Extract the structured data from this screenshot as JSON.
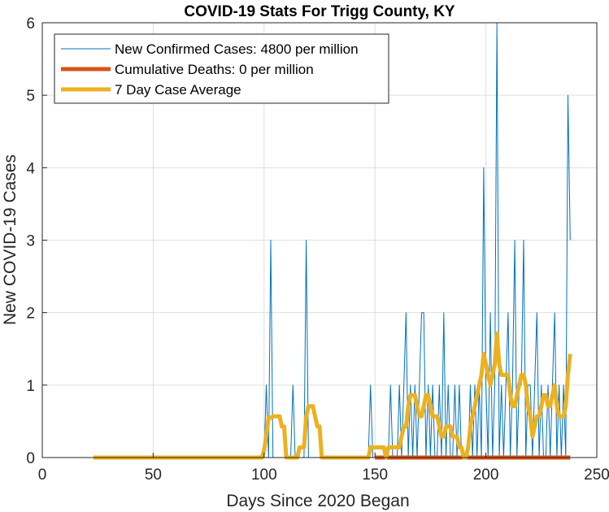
{
  "chart_data": {
    "type": "line",
    "title": "COVID-19 Stats For Trigg County, KY",
    "xlabel": "Days Since 2020 Began",
    "ylabel": "New COVID-19 Cases",
    "xlim": [
      0,
      250
    ],
    "ylim": [
      0,
      6
    ],
    "xticks": [
      0,
      50,
      100,
      150,
      200,
      250
    ],
    "yticks": [
      0,
      1,
      2,
      3,
      4,
      5,
      6
    ],
    "grid": true,
    "legend_position": "top-left",
    "series": [
      {
        "name": "New Confirmed Cases: 4800 per million",
        "color": "#0072BD",
        "line_width": "thin",
        "x": [
          23,
          100,
          101,
          102,
          103,
          104,
          112,
          113,
          114,
          116,
          118,
          119,
          120,
          121,
          122,
          124,
          126,
          147,
          148,
          149,
          150,
          151,
          152,
          154,
          156,
          157,
          158,
          159,
          160,
          161,
          162,
          163,
          164,
          165,
          166,
          167,
          168,
          169,
          170,
          171,
          172,
          173,
          174,
          175,
          176,
          177,
          178,
          179,
          180,
          181,
          182,
          183,
          184,
          185,
          186,
          187,
          188,
          189,
          190,
          191,
          192,
          193,
          194,
          195,
          196,
          197,
          198,
          199,
          200,
          201,
          202,
          203,
          204,
          205,
          206,
          207,
          208,
          209,
          210,
          211,
          212,
          213,
          214,
          215,
          216,
          217,
          218,
          219,
          220,
          221,
          222,
          223,
          224,
          225,
          226,
          227,
          228,
          229,
          230,
          231,
          232,
          233,
          234,
          235,
          236,
          237,
          238
        ],
        "y": [
          0,
          0,
          1,
          0,
          3,
          0,
          0,
          1,
          0,
          0,
          0,
          3,
          0,
          0,
          0,
          0,
          0,
          0,
          1,
          0,
          0,
          0,
          0,
          0,
          0,
          1,
          0,
          0,
          0,
          1,
          0,
          1,
          2,
          0,
          1,
          0,
          1,
          0,
          1,
          2,
          2,
          0,
          1,
          0,
          1,
          0,
          0,
          1,
          0,
          2,
          0,
          1,
          0,
          0,
          1,
          0,
          1,
          0,
          0,
          0,
          0,
          1,
          0,
          1,
          0,
          1,
          0,
          4,
          1,
          0,
          2,
          0,
          1,
          6,
          0,
          1,
          0,
          1,
          2,
          0,
          1,
          3,
          0,
          1,
          1,
          3,
          0,
          1,
          1,
          0,
          1,
          2,
          0,
          1,
          0,
          0,
          1,
          0,
          1,
          2,
          0,
          1,
          0,
          1,
          0,
          5,
          3
        ]
      },
      {
        "name": "Cumulative Deaths: 0 per million",
        "color": "#D95319",
        "line_width": "thick",
        "x": [
          150,
          238
        ],
        "y": [
          0,
          0
        ]
      },
      {
        "name": "7 Day Case Average",
        "color": "#EDB120",
        "line_width": "thick",
        "x": [
          23,
          99,
          100,
          101,
          102,
          103,
          104,
          105,
          106,
          107,
          108,
          109,
          110,
          111,
          112,
          113,
          114,
          115,
          116,
          117,
          118,
          119,
          120,
          121,
          122,
          123,
          124,
          125,
          126,
          127,
          128,
          146,
          147,
          148,
          149,
          150,
          151,
          152,
          153,
          154,
          155,
          156,
          157,
          158,
          159,
          160,
          161,
          162,
          163,
          164,
          165,
          166,
          167,
          168,
          169,
          170,
          171,
          172,
          173,
          174,
          175,
          176,
          177,
          178,
          179,
          180,
          181,
          182,
          183,
          184,
          185,
          186,
          187,
          188,
          189,
          190,
          191,
          192,
          193,
          194,
          195,
          196,
          197,
          198,
          199,
          200,
          201,
          202,
          203,
          204,
          205,
          206,
          207,
          208,
          209,
          210,
          211,
          212,
          213,
          214,
          215,
          216,
          217,
          218,
          219,
          220,
          221,
          222,
          223,
          224,
          225,
          226,
          227,
          228,
          229,
          230,
          231,
          232,
          233,
          234,
          235,
          236,
          237,
          238
        ],
        "y": [
          0,
          0,
          0.1,
          0.3,
          0.55,
          0.55,
          0.57,
          0.57,
          0.57,
          0.57,
          0.43,
          0.43,
          0,
          0,
          0,
          0,
          0,
          0,
          0.14,
          0.14,
          0.14,
          0.57,
          0.71,
          0.71,
          0.71,
          0.57,
          0.43,
          0.43,
          0,
          0,
          0,
          0,
          0,
          0.14,
          0.14,
          0.14,
          0.14,
          0.14,
          0.14,
          0.14,
          0,
          0.14,
          0.14,
          0.14,
          0.14,
          0.14,
          0.14,
          0.29,
          0.43,
          0.43,
          0.71,
          0.86,
          0.86,
          0.86,
          0.71,
          0.57,
          0.57,
          0.71,
          0.86,
          0.86,
          0.71,
          0.57,
          0.57,
          0.57,
          0.43,
          0.29,
          0.29,
          0.43,
          0.43,
          0.43,
          0.29,
          0.29,
          0.29,
          0.14,
          0.14,
          0,
          0,
          0.14,
          0.43,
          0.57,
          0.71,
          0.86,
          1.0,
          1.14,
          1.43,
          1.29,
          1.14,
          1.0,
          1.14,
          1.29,
          1.71,
          1.29,
          1.14,
          1.14,
          1.14,
          1.14,
          0.86,
          0.71,
          0.71,
          0.86,
          1.0,
          1.14,
          1.14,
          1.0,
          0.71,
          0.57,
          0.29,
          0.43,
          0.57,
          0.57,
          0.71,
          0.86,
          0.86,
          0.71,
          0.71,
          0.86,
          1.0,
          0.71,
          0.57,
          0.57,
          0.57,
          0.71,
          1.14,
          1.43
        ]
      }
    ]
  }
}
